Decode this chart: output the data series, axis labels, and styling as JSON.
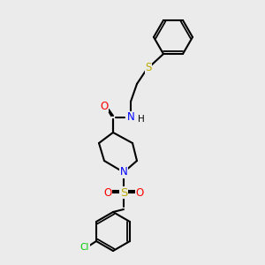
{
  "background_color": "#ebebeb",
  "bond_color": "#000000",
  "bond_lw": 1.5,
  "atom_colors": {
    "O": "#ff0000",
    "N": "#0000ff",
    "S": "#bbaa00",
    "Cl": "#00cc00",
    "C": "#000000",
    "H": "#000000"
  },
  "font_size": 7.5,
  "font_size_small": 6.5
}
